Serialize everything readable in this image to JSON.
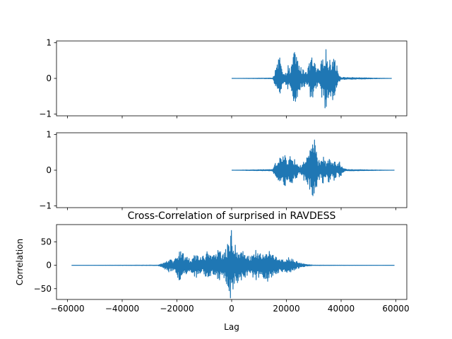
{
  "chart_data": [
    {
      "type": "line",
      "title": "",
      "xlabel": "",
      "ylabel": "",
      "xlim": [
        -64000,
        64000
      ],
      "ylim": [
        -1.05,
        1.05
      ],
      "x_ticks": [
        -60000,
        -40000,
        -20000,
        0,
        20000,
        40000,
        60000
      ],
      "x_ticks_labeled": false,
      "y_ticks": [
        -1,
        0,
        1
      ],
      "y_tick_labels": [
        "−1",
        "0",
        "1"
      ],
      "grid": false,
      "color": "#1f77b4",
      "series": [
        {
          "x_range": [
            0,
            58500
          ],
          "envelope": [
            {
              "x": 0,
              "amp": 0
            },
            {
              "x": 15000,
              "amp": 0.01
            },
            {
              "x": 15500,
              "amp": 0.12
            },
            {
              "x": 16500,
              "amp": 0.35
            },
            {
              "x": 17500,
              "amp": 0.72
            },
            {
              "x": 18500,
              "amp": 0.2
            },
            {
              "x": 19500,
              "amp": 0.08
            },
            {
              "x": 20500,
              "amp": 0.4
            },
            {
              "x": 21500,
              "amp": 0.22
            },
            {
              "x": 22200,
              "amp": 0.5
            },
            {
              "x": 23000,
              "amp": 0.95
            },
            {
              "x": 24000,
              "amp": 0.6
            },
            {
              "x": 25000,
              "amp": 0.35
            },
            {
              "x": 26000,
              "amp": 0.25
            },
            {
              "x": 27000,
              "amp": 0.25
            },
            {
              "x": 28000,
              "amp": 0.3
            },
            {
              "x": 29000,
              "amp": 0.65
            },
            {
              "x": 30000,
              "amp": 0.5
            },
            {
              "x": 31000,
              "amp": 0.3
            },
            {
              "x": 32000,
              "amp": 0.25
            },
            {
              "x": 33000,
              "amp": 0.55
            },
            {
              "x": 34200,
              "amp": 0.95
            },
            {
              "x": 35200,
              "amp": 0.55
            },
            {
              "x": 36200,
              "amp": 0.5
            },
            {
              "x": 37000,
              "amp": 0.75
            },
            {
              "x": 38000,
              "amp": 0.55
            },
            {
              "x": 39000,
              "amp": 0.15
            },
            {
              "x": 40000,
              "amp": 0.03
            },
            {
              "x": 58500,
              "amp": 0.0
            }
          ]
        }
      ]
    },
    {
      "type": "line",
      "title": "",
      "xlabel": "",
      "ylabel": "",
      "xlim": [
        -64000,
        64000
      ],
      "ylim": [
        -1.05,
        1.05
      ],
      "x_ticks": [
        -60000,
        -40000,
        -20000,
        0,
        20000,
        40000,
        60000
      ],
      "x_ticks_labeled": false,
      "y_ticks": [
        -1,
        0,
        1
      ],
      "y_tick_labels": [
        "−1",
        "0",
        "1"
      ],
      "grid": false,
      "color": "#1f77b4",
      "series": [
        {
          "x_range": [
            0,
            59500
          ],
          "envelope": [
            {
              "x": 0,
              "amp": 0
            },
            {
              "x": 15000,
              "amp": 0.02
            },
            {
              "x": 15500,
              "amp": 0.12
            },
            {
              "x": 16500,
              "amp": 0.3
            },
            {
              "x": 17500,
              "amp": 0.42
            },
            {
              "x": 18500,
              "amp": 0.35
            },
            {
              "x": 19500,
              "amp": 0.45
            },
            {
              "x": 20500,
              "amp": 0.35
            },
            {
              "x": 21500,
              "amp": 0.4
            },
            {
              "x": 22500,
              "amp": 0.35
            },
            {
              "x": 23500,
              "amp": 0.25
            },
            {
              "x": 24500,
              "amp": 0.12
            },
            {
              "x": 25500,
              "amp": 0.15
            },
            {
              "x": 26500,
              "amp": 0.3
            },
            {
              "x": 27500,
              "amp": 0.35
            },
            {
              "x": 28500,
              "amp": 0.55
            },
            {
              "x": 29500,
              "amp": 0.8
            },
            {
              "x": 30000,
              "amp": 0.98
            },
            {
              "x": 30700,
              "amp": 0.7
            },
            {
              "x": 31500,
              "amp": 0.3
            },
            {
              "x": 32500,
              "amp": 0.25
            },
            {
              "x": 33500,
              "amp": 0.4
            },
            {
              "x": 34500,
              "amp": 0.25
            },
            {
              "x": 35500,
              "amp": 0.38
            },
            {
              "x": 36500,
              "amp": 0.2
            },
            {
              "x": 37500,
              "amp": 0.3
            },
            {
              "x": 38500,
              "amp": 0.15
            },
            {
              "x": 39500,
              "amp": 0.25
            },
            {
              "x": 40500,
              "amp": 0.08
            },
            {
              "x": 42000,
              "amp": 0.02
            },
            {
              "x": 59500,
              "amp": 0.0
            }
          ]
        }
      ]
    },
    {
      "type": "line",
      "title": "Cross-Correlation of surprised in RAVDESS",
      "xlabel": "Lag",
      "ylabel": "Correlation",
      "xlim": [
        -64000,
        64000
      ],
      "ylim": [
        -73,
        87
      ],
      "x_ticks": [
        -60000,
        -40000,
        -20000,
        0,
        20000,
        40000,
        60000
      ],
      "x_tick_labels": [
        "−60000",
        "−40000",
        "−20000",
        "0",
        "20000",
        "40000",
        "60000"
      ],
      "y_ticks": [
        -50,
        0,
        50
      ],
      "y_tick_labels": [
        "−50",
        "0",
        "50"
      ],
      "grid": false,
      "color": "#1f77b4",
      "series": [
        {
          "x_range": [
            -58500,
            59500
          ],
          "envelope": [
            {
              "x": -58500,
              "amp": 0
            },
            {
              "x": -27000,
              "amp": 0.5
            },
            {
              "x": -25000,
              "amp": 5
            },
            {
              "x": -23000,
              "amp": 15
            },
            {
              "x": -21000,
              "amp": 10
            },
            {
              "x": -19000,
              "amp": 35
            },
            {
              "x": -17000,
              "amp": 22
            },
            {
              "x": -15000,
              "amp": 12
            },
            {
              "x": -13000,
              "amp": 28
            },
            {
              "x": -11000,
              "amp": 18
            },
            {
              "x": -9000,
              "amp": 30
            },
            {
              "x": -7000,
              "amp": 18
            },
            {
              "x": -5000,
              "amp": 38
            },
            {
              "x": -3000,
              "amp": 25
            },
            {
              "x": -1500,
              "amp": 45
            },
            {
              "x": -600,
              "amp": 65
            },
            {
              "x": -200,
              "amp": 82
            },
            {
              "x": 200,
              "amp": 70
            },
            {
              "x": 700,
              "amp": 55
            },
            {
              "x": 1500,
              "amp": 40
            },
            {
              "x": 3000,
              "amp": 35
            },
            {
              "x": 5000,
              "amp": 28
            },
            {
              "x": 7000,
              "amp": 20
            },
            {
              "x": 9000,
              "amp": 35
            },
            {
              "x": 11000,
              "amp": 22
            },
            {
              "x": 13000,
              "amp": 38
            },
            {
              "x": 15000,
              "amp": 22
            },
            {
              "x": 17000,
              "amp": 20
            },
            {
              "x": 19000,
              "amp": 12
            },
            {
              "x": 21000,
              "amp": 18
            },
            {
              "x": 23000,
              "amp": 10
            },
            {
              "x": 25000,
              "amp": 6
            },
            {
              "x": 27000,
              "amp": 2
            },
            {
              "x": 30000,
              "amp": 0.4
            },
            {
              "x": 59500,
              "amp": 0
            }
          ]
        }
      ]
    }
  ]
}
